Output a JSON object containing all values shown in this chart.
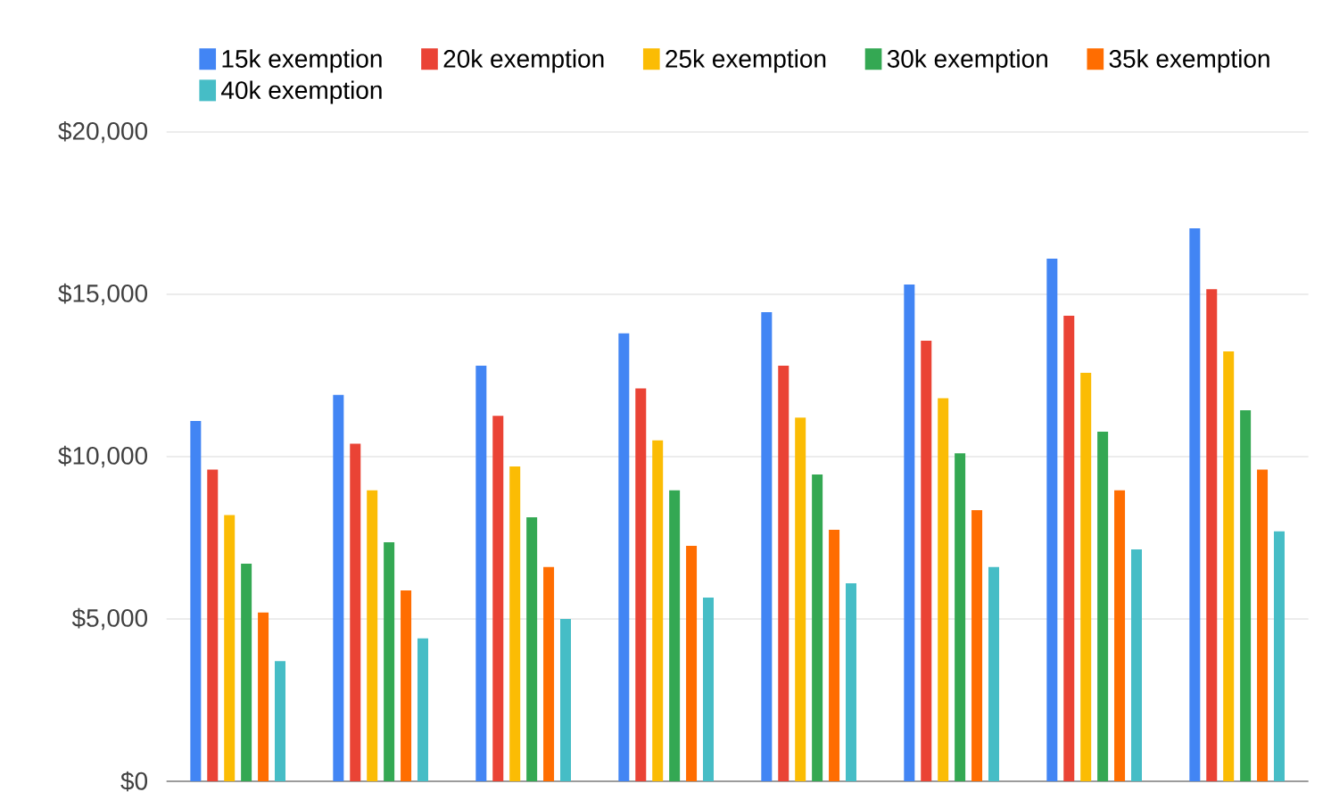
{
  "chart_data": {
    "type": "bar",
    "categories": [
      null,
      null,
      null,
      null,
      null,
      null,
      null,
      null
    ],
    "series": [
      {
        "name": "15k exemption",
        "color": "#4285f4",
        "values": [
          11100,
          11900,
          12800,
          13800,
          14450,
          15300,
          16100,
          17030
        ]
      },
      {
        "name": "20k exemption",
        "color": "#ea4335",
        "values": [
          9600,
          10400,
          11260,
          12100,
          12800,
          13570,
          14340,
          15160
        ]
      },
      {
        "name": "25k exemption",
        "color": "#fbbc04",
        "values": [
          8200,
          8960,
          9700,
          10500,
          11200,
          11800,
          12580,
          13240
        ]
      },
      {
        "name": "30k exemption",
        "color": "#34a853",
        "values": [
          6700,
          7360,
          8130,
          8960,
          9450,
          10100,
          10770,
          11430
        ]
      },
      {
        "name": "35k exemption",
        "color": "#ff6d01",
        "values": [
          5200,
          5880,
          6600,
          7250,
          7750,
          8350,
          8960,
          9600
        ]
      },
      {
        "name": "40k exemption",
        "color": "#46bdc6",
        "values": [
          3700,
          4400,
          5000,
          5660,
          6100,
          6600,
          7140,
          7700
        ]
      }
    ],
    "ylim": [
      0,
      20000
    ],
    "yticks": [
      {
        "value": 0,
        "label": "$0"
      },
      {
        "value": 5000,
        "label": "$5,000"
      },
      {
        "value": 10000,
        "label": "$10,000"
      },
      {
        "value": 15000,
        "label": "$15,000"
      },
      {
        "value": 20000,
        "label": "$20,000"
      }
    ],
    "grid": "y",
    "legend": "top",
    "tick_labels": "y"
  }
}
